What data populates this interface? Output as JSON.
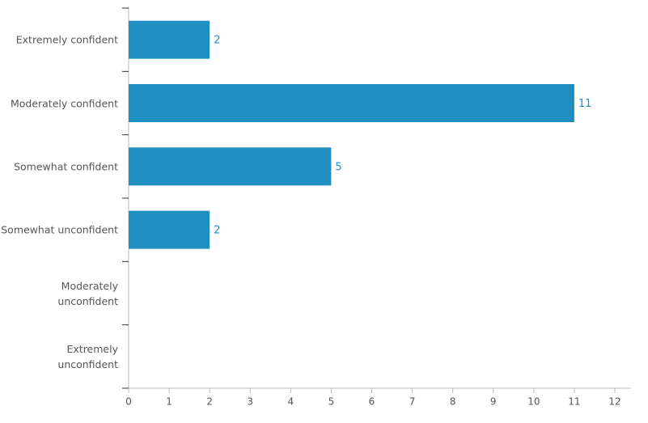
{
  "chart_data": {
    "type": "bar",
    "orientation": "horizontal",
    "categories": [
      "Extremely confident",
      "Moderately confident",
      "Somewhat confident",
      "Somewhat unconfident",
      "Moderately\nunconfident",
      "Extremely\nunconfident"
    ],
    "values": [
      2,
      11,
      5,
      2,
      0,
      0
    ],
    "color": "#1f8fc1",
    "xlim": [
      0,
      12
    ],
    "xticks": [
      0,
      1,
      2,
      3,
      4,
      5,
      6,
      7,
      8,
      9,
      10,
      11,
      12
    ]
  }
}
